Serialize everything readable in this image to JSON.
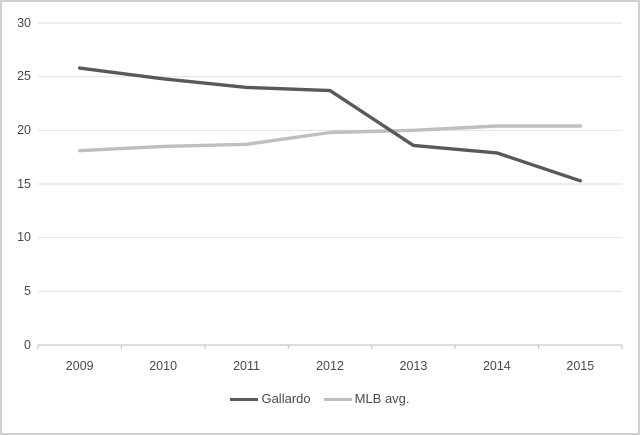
{
  "chart_data": {
    "type": "line",
    "title": "",
    "xlabel": "",
    "ylabel": "",
    "x": [
      "2009",
      "2010",
      "2011",
      "2012",
      "2013",
      "2014",
      "2015"
    ],
    "series": [
      {
        "name": "Gallardo",
        "color": "#595959",
        "values": [
          25.8,
          24.8,
          24.0,
          23.7,
          18.6,
          17.9,
          15.3
        ]
      },
      {
        "name": "MLB avg.",
        "color": "#bfbfbf",
        "values": [
          18.1,
          18.5,
          18.7,
          19.8,
          20.0,
          20.4,
          20.4
        ]
      }
    ],
    "ylim": [
      0,
      30
    ],
    "yticks": [
      0,
      5,
      10,
      15,
      20,
      25,
      30
    ],
    "grid": true,
    "legend_position": "bottom-center"
  },
  "style_colors": {
    "gridline": "#e2e2e2",
    "axis_line": "#c8c8c8",
    "tick_label": "#4a4a4a",
    "frame_border": "#d0d0d0",
    "background": "#ffffff"
  }
}
